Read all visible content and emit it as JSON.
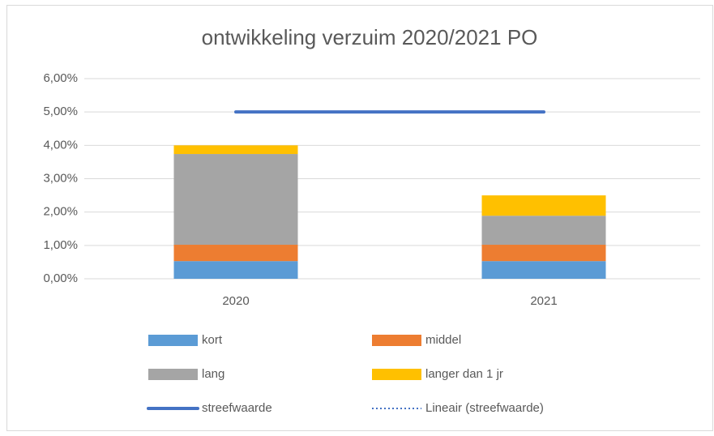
{
  "chart_data": {
    "type": "bar",
    "stacked": true,
    "title": "ontwikkeling verzuim 2020/2021 PO",
    "categories": [
      "2020",
      "2021"
    ],
    "series": [
      {
        "name": "kort",
        "color": "#5b9bd5",
        "values": [
          0.53,
          0.53
        ]
      },
      {
        "name": "middel",
        "color": "#ed7d31",
        "values": [
          0.49,
          0.49
        ]
      },
      {
        "name": "lang",
        "color": "#a5a5a5",
        "values": [
          2.72,
          0.87
        ]
      },
      {
        "name": "langer dan 1 jr",
        "color": "#ffc000",
        "values": [
          0.26,
          0.61
        ]
      },
      {
        "name": "streefwaarde",
        "type": "line",
        "color": "#4472c4",
        "values": [
          5,
          5
        ]
      }
    ],
    "trendline": {
      "name": "Lineair (streefwaarde)",
      "color": "#4472c4",
      "style": "dotted"
    },
    "ylim": [
      0,
      6
    ],
    "yticks": [
      {
        "value": 0,
        "label": "0,00%"
      },
      {
        "value": 1,
        "label": "1,00%"
      },
      {
        "value": 2,
        "label": "2,00%"
      },
      {
        "value": 3,
        "label": "3,00%"
      },
      {
        "value": 4,
        "label": "4,00%"
      },
      {
        "value": 5,
        "label": "5,00%"
      },
      {
        "value": 6,
        "label": "6,00%"
      }
    ],
    "grid": true,
    "legend": "bottom"
  }
}
